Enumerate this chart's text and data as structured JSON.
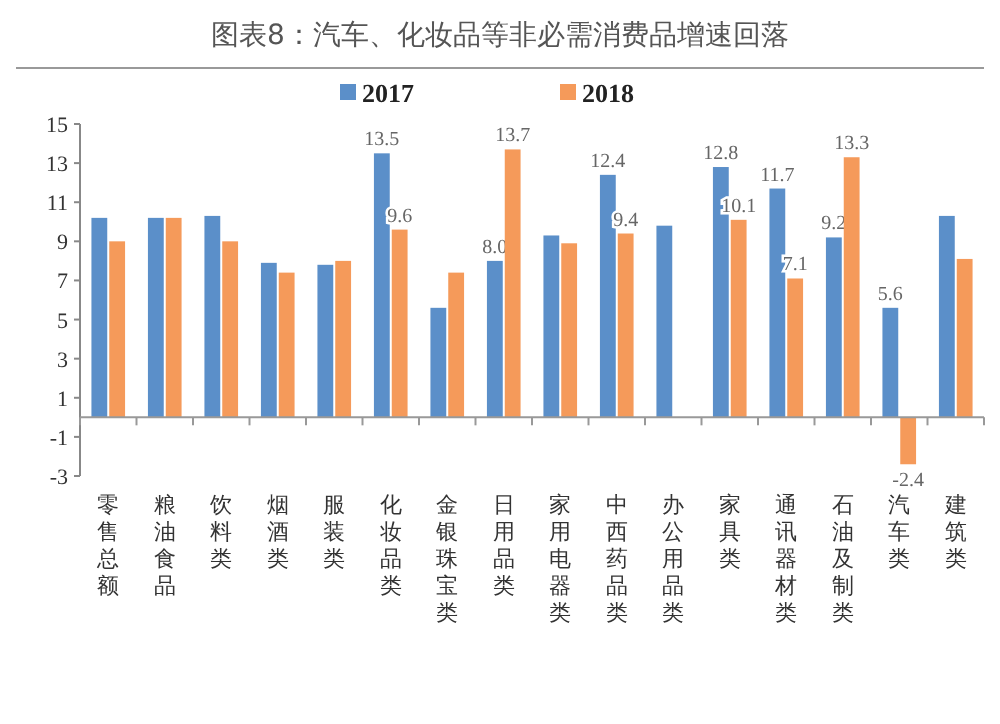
{
  "chart_data": {
    "type": "bar",
    "title": "图表8：汽车、化妆品等非必需消费品增速回落",
    "categories": [
      "零售总额",
      "粮油食品",
      "饮料类",
      "烟酒类",
      "服装类",
      "化妆品类",
      "金银珠宝类",
      "日用品类",
      "家用电器类",
      "中西药品类",
      "办公用品类",
      "家具类",
      "通讯器材类",
      "石油及制类",
      "汽车类",
      "建筑类"
    ],
    "series": [
      {
        "name": "2017",
        "color": "#5b8fc9",
        "values": [
          10.2,
          10.2,
          10.3,
          7.9,
          7.8,
          13.5,
          5.6,
          8.0,
          9.3,
          12.4,
          9.8,
          12.8,
          11.7,
          9.2,
          5.6,
          10.3
        ],
        "value_labels": [
          null,
          null,
          null,
          null,
          null,
          "13.5",
          null,
          "8.0",
          null,
          "12.4",
          null,
          "12.8",
          "11.7",
          "9.2",
          "5.6",
          null
        ]
      },
      {
        "name": "2018",
        "color": "#f59a5a",
        "values": [
          9.0,
          10.2,
          9.0,
          7.4,
          8.0,
          9.6,
          7.4,
          13.7,
          8.9,
          9.4,
          null,
          10.1,
          7.1,
          13.3,
          -2.4,
          8.1
        ],
        "value_labels": [
          null,
          null,
          null,
          null,
          null,
          "9.6",
          null,
          "13.7",
          null,
          "9.4",
          null,
          "10.1",
          "7.1",
          "13.3",
          "-2.4",
          null
        ]
      }
    ],
    "ylim": [
      -3,
      15
    ],
    "yticks": [
      -3,
      -1,
      1,
      3,
      5,
      7,
      9,
      11,
      13,
      15
    ],
    "grid": false,
    "legend": "top"
  }
}
